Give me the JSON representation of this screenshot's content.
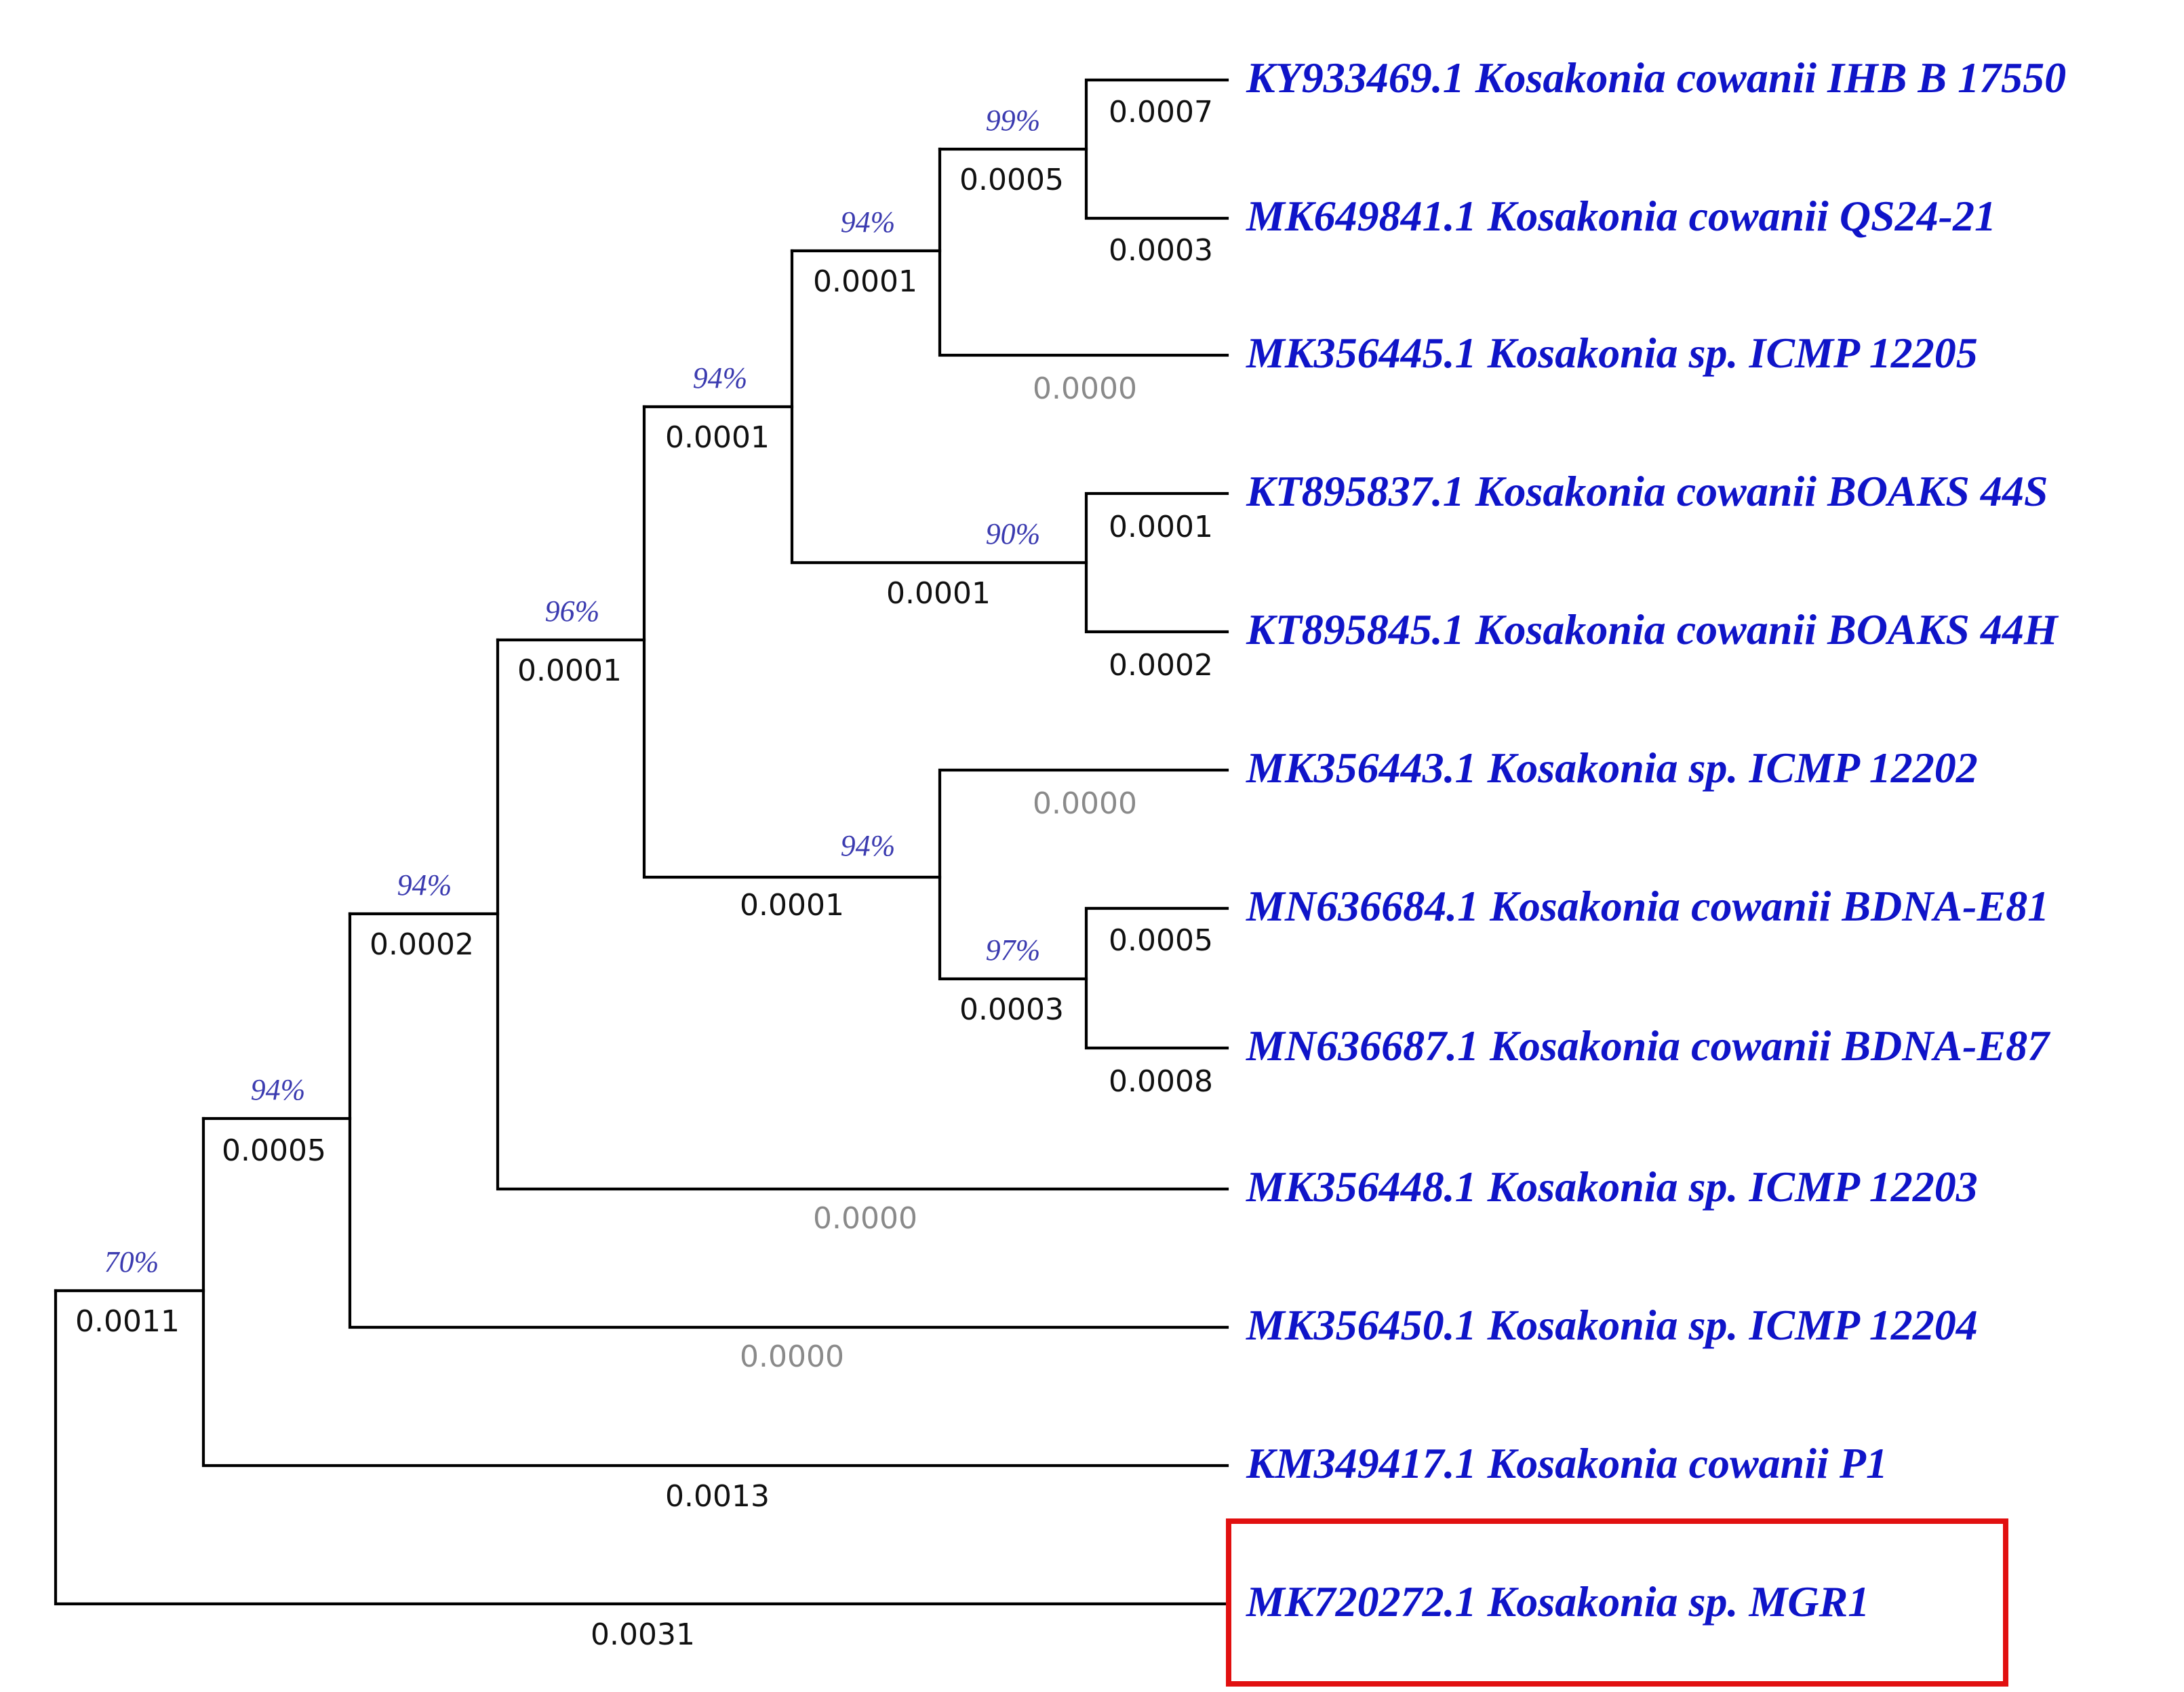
{
  "tree": {
    "taxa": [
      {
        "id": "KY933469",
        "label": "KY933469.1 Kosakonia cowanii  IHB B 17550"
      },
      {
        "id": "MK649841",
        "label": "MK649841.1 Kosakonia cowanii QS24-21"
      },
      {
        "id": "MK356445",
        "label": "MK356445.1 Kosakonia sp.  ICMP 12205"
      },
      {
        "id": "KT895837",
        "label": "KT895837.1 Kosakonia cowanii BOAKS 44S"
      },
      {
        "id": "KT895845",
        "label": "KT895845.1 Kosakonia cowanii BOAKS 44H"
      },
      {
        "id": "MK356443",
        "label": "MK356443.1 Kosakonia sp.  ICMP 12202"
      },
      {
        "id": "MN636684",
        "label": "MN636684.1 Kosakonia cowanii BDNA-E81"
      },
      {
        "id": "MN636687",
        "label": "MN636687.1 Kosakonia cowanii  BDNA-E87"
      },
      {
        "id": "MK356448",
        "label": "MK356448.1 Kosakonia sp. ICMP 12203"
      },
      {
        "id": "MK356450",
        "label": "MK356450.1 Kosakonia sp.  ICMP 12204"
      },
      {
        "id": "KM349417",
        "label": "KM349417.1 Kosakonia cowanii P1"
      },
      {
        "id": "MK720272",
        "label": "MK720272.1 Kosakonia sp. MGR1"
      }
    ],
    "terminal_branch_lengths": {
      "KY933469": "0.0007",
      "MK649841": "0.0003",
      "MK356445": "0.0000",
      "KT895837": "0.0001",
      "KT895845": "0.0002",
      "MK356443": "0.0000",
      "MN636684": "0.0005",
      "MN636687": "0.0008",
      "MK356448": "0.0000",
      "MK356450": "0.0000",
      "KM349417": "0.0013",
      "MK720272": "0.0031"
    },
    "internal_nodes": {
      "n70": {
        "bootstrap": "70%",
        "branch_length": "0.0011"
      },
      "n94a": {
        "bootstrap": "94%",
        "branch_length": "0.0005"
      },
      "n94b": {
        "bootstrap": "94%",
        "branch_length": "0.0002"
      },
      "n96": {
        "bootstrap": "96%",
        "branch_length": "0.0001"
      },
      "n94c": {
        "bootstrap": "94%",
        "branch_length": "0.0001"
      },
      "n94d": {
        "bootstrap": "94%",
        "branch_length": "0.0001"
      },
      "n99": {
        "bootstrap": "99%",
        "branch_length": "0.0005"
      },
      "n90": {
        "bootstrap": "90%",
        "branch_length": "0.0001"
      },
      "n94e": {
        "bootstrap": "94%",
        "branch_length": "0.0001"
      },
      "n97": {
        "bootstrap": "97%",
        "branch_length": "0.0003"
      }
    },
    "highlighted_taxon": "MK720272",
    "colors": {
      "branch": "#000000",
      "taxon_label": "#0f14c8",
      "bootstrap": "#3b3bb0",
      "zero_length": "#8a8a8a",
      "highlight_box": "#e11010"
    }
  }
}
